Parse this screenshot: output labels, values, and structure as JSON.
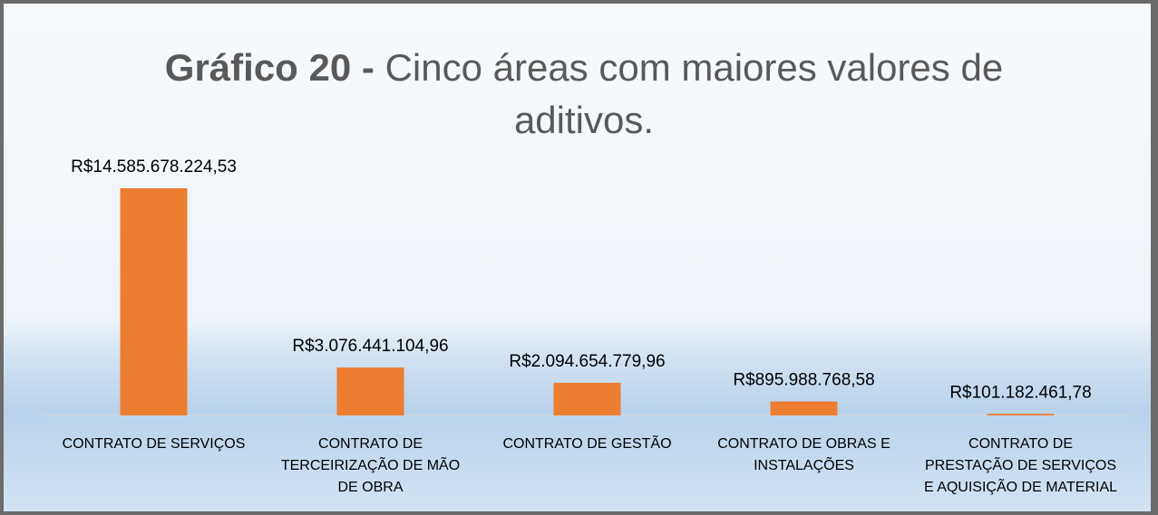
{
  "chart_data": {
    "type": "bar",
    "title": [
      "Gráfico 20 -",
      "Cinco áreas com maiores valores de aditivos."
    ],
    "categories": [
      "CONTRATO DE SERVIÇOS",
      "CONTRATO DE TERCEIRIZAÇÃO DE MÃO DE OBRA",
      "CONTRATO DE GESTÃO",
      "CONTRATO DE OBRAS E INSTALAÇÕES",
      "CONTRATO DE PRESTAÇÃO DE SERVIÇOS E AQUISIÇÃO DE MATERIAL"
    ],
    "values": [
      14585678224.53,
      3076441104.96,
      2094654779.96,
      895988768.58,
      101182461.78
    ],
    "value_labels": [
      "R$14.585.678.224,53",
      "R$3.076.441.104,96",
      "R$2.094.654.779,96",
      "R$895.988.768,58",
      "R$101.182.461,78"
    ],
    "color": "#ed7d31"
  }
}
